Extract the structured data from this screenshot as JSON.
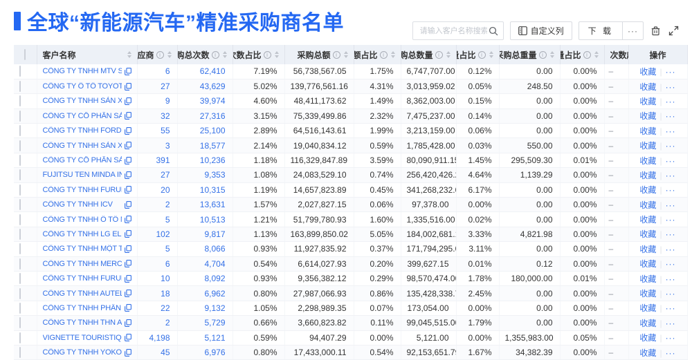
{
  "colors": {
    "accent": "#2468F2",
    "link": "#3370E7",
    "header_bg": "#edf1f7"
  },
  "header": {
    "title": "全球“新能源汽车”精准采购商名单"
  },
  "toolbar": {
    "search_placeholder": "请输入客户名称搜索",
    "customize_columns": "自定义列",
    "download": "下 载",
    "download_more": "···"
  },
  "table": {
    "action_favorite": "收藏",
    "action_more": "···",
    "columns": [
      {
        "label": "",
        "type": "checkbox"
      },
      {
        "label": "客户名称",
        "info": false,
        "sort": true
      },
      {
        "label": "供应商",
        "info": true,
        "sort": true
      },
      {
        "label": "采购总次数",
        "info": true,
        "sort": true
      },
      {
        "label": "次数占比",
        "info": true,
        "sort": true
      },
      {
        "label": "采购总额",
        "info": true,
        "sort": true
      },
      {
        "label": "总额占比",
        "info": true,
        "sort": true
      },
      {
        "label": "采购总数量",
        "info": true,
        "sort": true
      },
      {
        "label": "数量占比",
        "info": true,
        "sort": true
      },
      {
        "label": "采购总重量",
        "info": true,
        "sort": true
      },
      {
        "label": "重量占比",
        "info": true,
        "sort": true
      },
      {
        "label": "次数趋势",
        "info": false,
        "sort": false
      },
      {
        "label": "操作",
        "info": false,
        "sort": false
      }
    ],
    "rows": [
      {
        "name": "CÔNG TY TNHH MTV SẢN XUẤ...",
        "suppliers": "6",
        "purchases": "62,410",
        "count_pct": "7.19%",
        "amount": "56,738,567.05",
        "amount_pct": "1.75%",
        "quantity": "6,747,707.00",
        "qty_pct": "0.12%",
        "weight": "0.00",
        "weight_pct": "0.00%",
        "trend": "–"
      },
      {
        "name": "CÔNG TY Ô TÔ TOYOTA VIỆT ...",
        "suppliers": "27",
        "purchases": "43,629",
        "count_pct": "5.02%",
        "amount": "139,776,561.16",
        "amount_pct": "4.31%",
        "quantity": "3,013,959.02",
        "qty_pct": "0.05%",
        "weight": "248.50",
        "weight_pct": "0.00%",
        "trend": "–"
      },
      {
        "name": "CÔNG TY TNHH SẢN XUẤT VÀ ...",
        "suppliers": "9",
        "purchases": "39,974",
        "count_pct": "4.60%",
        "amount": "48,411,173.62",
        "amount_pct": "1.49%",
        "quantity": "8,362,003.00",
        "qty_pct": "0.15%",
        "weight": "0.00",
        "weight_pct": "0.00%",
        "trend": "–"
      },
      {
        "name": "CÔNG TY CỔ PHẦN SẢN XUẤT...",
        "suppliers": "32",
        "purchases": "27,316",
        "count_pct": "3.15%",
        "amount": "75,339,499.86",
        "amount_pct": "2.32%",
        "quantity": "7,475,237.00",
        "qty_pct": "0.14%",
        "weight": "0.00",
        "weight_pct": "0.00%",
        "trend": "–"
      },
      {
        "name": "CÔNG TY TNHH FORD VIỆT NAM",
        "suppliers": "55",
        "purchases": "25,100",
        "count_pct": "2.89%",
        "amount": "64,516,143.61",
        "amount_pct": "1.99%",
        "quantity": "3,213,159.00",
        "qty_pct": "0.06%",
        "weight": "0.00",
        "weight_pct": "0.00%",
        "trend": "–"
      },
      {
        "name": "CÔNG TY TNHH SẢN XUẤT VÀ ...",
        "suppliers": "3",
        "purchases": "18,577",
        "count_pct": "2.14%",
        "amount": "19,040,834.12",
        "amount_pct": "0.59%",
        "quantity": "1,785,428.00",
        "qty_pct": "0.03%",
        "weight": "550.00",
        "weight_pct": "0.00%",
        "trend": "–"
      },
      {
        "name": "CÔNG TY CỔ PHẦN SẢN XUẤT...",
        "suppliers": "391",
        "purchases": "10,236",
        "count_pct": "1.18%",
        "amount": "116,329,847.89",
        "amount_pct": "3.59%",
        "quantity": "80,090,911.15",
        "qty_pct": "1.45%",
        "weight": "295,509.30",
        "weight_pct": "0.01%",
        "trend": "–"
      },
      {
        "name": "FUJITSU TEN MINDA INDIA PVT...",
        "suppliers": "27",
        "purchases": "9,353",
        "count_pct": "1.08%",
        "amount": "24,083,529.10",
        "amount_pct": "0.74%",
        "quantity": "256,420,426.29",
        "qty_pct": "4.64%",
        "weight": "1,139.29",
        "weight_pct": "0.00%",
        "trend": "–"
      },
      {
        "name": "CÔNG TY TNHH FURUKAWA A...",
        "suppliers": "20",
        "purchases": "10,315",
        "count_pct": "1.19%",
        "amount": "14,657,823.89",
        "amount_pct": "0.45%",
        "quantity": "341,268,232.00",
        "qty_pct": "6.17%",
        "weight": "0.00",
        "weight_pct": "0.00%",
        "trend": "–"
      },
      {
        "name": "CÔNG TY TNHH ICV",
        "suppliers": "2",
        "purchases": "13,631",
        "count_pct": "1.57%",
        "amount": "2,027,827.15",
        "amount_pct": "0.06%",
        "quantity": "97,378.00",
        "qty_pct": "0.00%",
        "weight": "0.00",
        "weight_pct": "0.00%",
        "trend": "–"
      },
      {
        "name": "CÔNG TY TNHH Ô TÔ MITSUBI...",
        "suppliers": "5",
        "purchases": "10,513",
        "count_pct": "1.21%",
        "amount": "51,799,780.93",
        "amount_pct": "1.60%",
        "quantity": "1,335,516.00",
        "qty_pct": "0.02%",
        "weight": "0.00",
        "weight_pct": "0.00%",
        "trend": "–"
      },
      {
        "name": "CÔNG TY TNHH LG ELECTRON...",
        "suppliers": "102",
        "purchases": "9,817",
        "count_pct": "1.13%",
        "amount": "163,899,850.02",
        "amount_pct": "5.05%",
        "quantity": "184,002,681.15",
        "qty_pct": "3.33%",
        "weight": "4,821.98",
        "weight_pct": "0.00%",
        "trend": "–"
      },
      {
        "name": "CÔNG TY TNHH MỘT THÀNH V...",
        "suppliers": "5",
        "purchases": "8,066",
        "count_pct": "0.93%",
        "amount": "11,927,835.92",
        "amount_pct": "0.37%",
        "quantity": "171,794,295.00",
        "qty_pct": "3.11%",
        "weight": "0.00",
        "weight_pct": "0.00%",
        "trend": "–"
      },
      {
        "name": "CÔNG TY TNHH MERCEDES–B...",
        "suppliers": "6",
        "purchases": "4,704",
        "count_pct": "0.54%",
        "amount": "6,614,027.93",
        "amount_pct": "0.20%",
        "quantity": "399,627.15",
        "qty_pct": "0.01%",
        "weight": "0.12",
        "weight_pct": "0.00%",
        "trend": "–"
      },
      {
        "name": "CÔNG TY TNHH FURUKAWA A...",
        "suppliers": "10",
        "purchases": "8,092",
        "count_pct": "0.93%",
        "amount": "9,356,382.12",
        "amount_pct": "0.29%",
        "quantity": "98,570,474.00",
        "qty_pct": "1.78%",
        "weight": "180,000.00",
        "weight_pct": "0.01%",
        "trend": "–"
      },
      {
        "name": "CÔNG TY TNHH AUTEL VIỆT N...",
        "suppliers": "18",
        "purchases": "6,962",
        "count_pct": "0.80%",
        "amount": "27,987,066.93",
        "amount_pct": "0.86%",
        "quantity": "135,428,338.71",
        "qty_pct": "2.45%",
        "weight": "0.00",
        "weight_pct": "0.00%",
        "trend": "–"
      },
      {
        "name": "CÔNG TY TNHH PHÂN PHỐI T...",
        "suppliers": "22",
        "purchases": "9,132",
        "count_pct": "1.05%",
        "amount": "2,298,989.35",
        "amount_pct": "0.07%",
        "quantity": "173,054.00",
        "qty_pct": "0.00%",
        "weight": "0.00",
        "weight_pct": "0.00%",
        "trend": "–"
      },
      {
        "name": "CÔNG TY TNHH THN AUTOPAR...",
        "suppliers": "2",
        "purchases": "5,729",
        "count_pct": "0.66%",
        "amount": "3,660,823.82",
        "amount_pct": "0.11%",
        "quantity": "99,045,515.00",
        "qty_pct": "1.79%",
        "weight": "0.00",
        "weight_pct": "0.00%",
        "trend": "–"
      },
      {
        "name": "VIGNETTE TOURISTIQUE G UNI...",
        "suppliers": "4,198",
        "purchases": "5,121",
        "count_pct": "0.59%",
        "amount": "94,407.29",
        "amount_pct": "0.00%",
        "quantity": "5,121.00",
        "qty_pct": "0.00%",
        "weight": "1,355,983.00",
        "weight_pct": "0.05%",
        "trend": "–"
      },
      {
        "name": "CÔNG TY TNHH YOKOWO VIỆT...",
        "suppliers": "45",
        "purchases": "6,976",
        "count_pct": "0.80%",
        "amount": "17,433,000.11",
        "amount_pct": "0.54%",
        "quantity": "92,153,651.79",
        "qty_pct": "1.67%",
        "weight": "34,382.39",
        "weight_pct": "0.00%",
        "trend": "–"
      }
    ]
  }
}
